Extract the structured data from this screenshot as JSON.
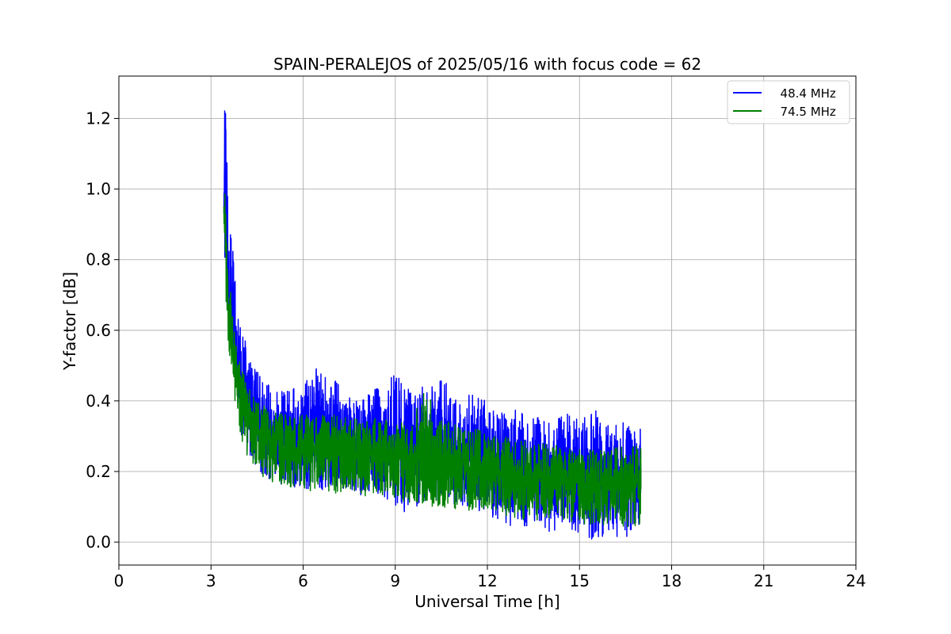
{
  "chart_data": {
    "type": "line",
    "title": "SPAIN-PERALEJOS of 2025/05/16 with focus code = 62",
    "xlabel": "Universal Time [h]",
    "ylabel": "Y-factor [dB]",
    "xlim": [
      0,
      24
    ],
    "ylim": [
      -0.065,
      1.32
    ],
    "xticks": [
      0,
      3,
      6,
      9,
      12,
      15,
      18,
      21,
      24
    ],
    "xtick_labels": [
      "0",
      "3",
      "6",
      "9",
      "12",
      "15",
      "18",
      "21",
      "24"
    ],
    "yticks": [
      0.0,
      0.2,
      0.4,
      0.6,
      0.8,
      1.0,
      1.2
    ],
    "ytick_labels": [
      "0.0",
      "0.2",
      "0.4",
      "0.6",
      "0.8",
      "1.0",
      "1.2"
    ],
    "grid": true,
    "legend_position": "top-right",
    "series": [
      {
        "name": "  48.4 MHz",
        "color": "#0000ff",
        "x": [
          3.42,
          3.45,
          3.5,
          3.55,
          3.6,
          3.7,
          3.8,
          3.9,
          4.0,
          4.2,
          4.4,
          4.6,
          4.8,
          5.0,
          5.5,
          6.0,
          6.5,
          7.0,
          7.5,
          8.0,
          8.5,
          9.0,
          9.5,
          10.0,
          10.5,
          11.0,
          11.5,
          12.0,
          12.5,
          13.0,
          13.5,
          14.0,
          14.5,
          15.0,
          15.5,
          16.0,
          16.5,
          17.0
        ],
        "center": [
          0.98,
          1.1,
          0.95,
          0.82,
          0.72,
          0.62,
          0.55,
          0.5,
          0.46,
          0.41,
          0.37,
          0.34,
          0.32,
          0.31,
          0.3,
          0.29,
          0.29,
          0.28,
          0.27,
          0.27,
          0.26,
          0.25,
          0.25,
          0.25,
          0.24,
          0.23,
          0.22,
          0.21,
          0.2,
          0.19,
          0.19,
          0.18,
          0.18,
          0.17,
          0.17,
          0.16,
          0.16,
          0.16
        ],
        "low": [
          0.92,
          0.8,
          0.72,
          0.62,
          0.56,
          0.48,
          0.42,
          0.35,
          0.3,
          0.26,
          0.22,
          0.2,
          0.18,
          0.17,
          0.16,
          0.15,
          0.15,
          0.14,
          0.14,
          0.13,
          0.13,
          0.1,
          0.07,
          0.11,
          0.1,
          0.1,
          0.09,
          0.08,
          0.05,
          0.04,
          0.05,
          0.03,
          0.04,
          0.02,
          0.0,
          0.02,
          0.01,
          0.03
        ],
        "high": [
          1.0,
          1.26,
          1.22,
          1.05,
          0.9,
          0.84,
          0.76,
          0.64,
          0.6,
          0.55,
          0.5,
          0.47,
          0.46,
          0.43,
          0.44,
          0.45,
          0.5,
          0.46,
          0.43,
          0.42,
          0.44,
          0.48,
          0.44,
          0.44,
          0.47,
          0.42,
          0.43,
          0.4,
          0.37,
          0.38,
          0.36,
          0.34,
          0.38,
          0.35,
          0.38,
          0.33,
          0.34,
          0.34
        ]
      },
      {
        "name": "  74.5 MHz",
        "color": "#008000",
        "x": [
          3.42,
          3.45,
          3.5,
          3.55,
          3.6,
          3.7,
          3.8,
          3.9,
          4.0,
          4.2,
          4.4,
          4.6,
          4.8,
          5.0,
          5.5,
          6.0,
          6.5,
          7.0,
          7.5,
          8.0,
          8.5,
          9.0,
          9.5,
          10.0,
          10.5,
          11.0,
          11.5,
          12.0,
          12.5,
          13.0,
          13.5,
          14.0,
          14.5,
          15.0,
          15.5,
          16.0,
          16.5,
          17.0
        ],
        "center": [
          0.95,
          0.92,
          0.8,
          0.7,
          0.62,
          0.54,
          0.48,
          0.44,
          0.41,
          0.37,
          0.34,
          0.31,
          0.3,
          0.29,
          0.28,
          0.27,
          0.27,
          0.26,
          0.26,
          0.25,
          0.25,
          0.24,
          0.24,
          0.23,
          0.23,
          0.22,
          0.21,
          0.2,
          0.19,
          0.18,
          0.18,
          0.18,
          0.17,
          0.17,
          0.16,
          0.16,
          0.16,
          0.16
        ],
        "low": [
          0.9,
          0.82,
          0.65,
          0.58,
          0.52,
          0.42,
          0.37,
          0.3,
          0.27,
          0.24,
          0.22,
          0.19,
          0.17,
          0.17,
          0.15,
          0.15,
          0.14,
          0.14,
          0.13,
          0.13,
          0.13,
          0.12,
          0.11,
          0.1,
          0.1,
          0.09,
          0.09,
          0.08,
          0.07,
          0.06,
          0.06,
          0.06,
          0.05,
          0.05,
          0.05,
          0.05,
          0.04,
          0.05
        ],
        "high": [
          0.98,
          1.03,
          0.95,
          0.83,
          0.74,
          0.66,
          0.58,
          0.53,
          0.5,
          0.45,
          0.42,
          0.4,
          0.38,
          0.37,
          0.36,
          0.36,
          0.36,
          0.36,
          0.35,
          0.35,
          0.35,
          0.35,
          0.34,
          0.45,
          0.35,
          0.33,
          0.32,
          0.32,
          0.3,
          0.29,
          0.28,
          0.28,
          0.27,
          0.27,
          0.26,
          0.26,
          0.28,
          0.27
        ]
      }
    ]
  }
}
